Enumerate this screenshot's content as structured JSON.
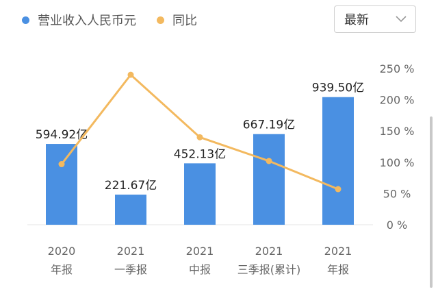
{
  "legend": {
    "revenue_label": "营业收入人民币元",
    "yoy_label": "同比"
  },
  "period_select": {
    "label": "最新"
  },
  "colors": {
    "bar": "#4a90e2",
    "line": "#f3b95f",
    "axis_text": "#666666",
    "value_text": "#222222"
  },
  "chart_data": {
    "type": "bar",
    "categories": [
      [
        "2020",
        "年报"
      ],
      [
        "2021",
        "一季报"
      ],
      [
        "2021",
        "中报"
      ],
      [
        "2021",
        "三季报(累计)"
      ],
      [
        "2021",
        "年报"
      ]
    ],
    "series": [
      {
        "name": "营业收入人民币元",
        "type": "bar",
        "values": [
          594.92,
          221.67,
          452.13,
          667.19,
          939.5
        ],
        "labels": [
          "594.92亿",
          "221.67亿",
          "452.13亿",
          "667.19亿",
          "939.50亿"
        ]
      },
      {
        "name": "同比",
        "type": "line",
        "axis": "right",
        "values": [
          97,
          240,
          140,
          102,
          57
        ]
      }
    ],
    "right_axis": {
      "ticks": [
        "0 %",
        "50 %",
        "100 %",
        "150 %",
        "200 %",
        "250 %"
      ],
      "ylim": [
        0,
        250
      ]
    },
    "left_axis": {
      "ylim": [
        0,
        1150
      ]
    },
    "grid": false,
    "legend_position": "top-left"
  }
}
